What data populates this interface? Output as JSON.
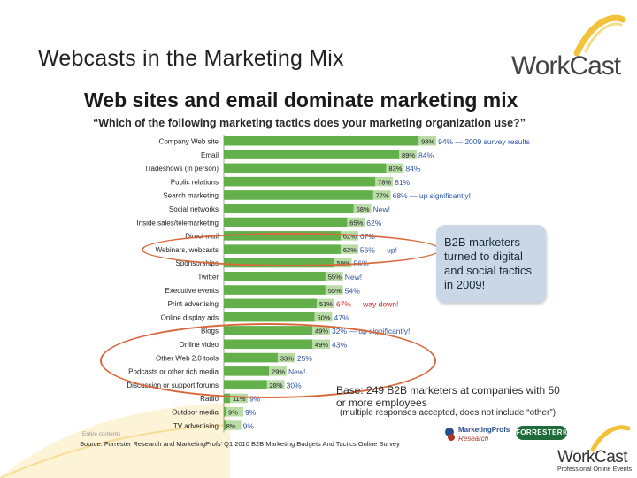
{
  "slide": {
    "title": "Webcasts in the Marketing Mix",
    "logo_top": "WorkCast",
    "logo_bottom": "WorkCast",
    "logo_tagline": "Professional Online Events"
  },
  "chart_data": {
    "type": "bar",
    "orientation": "horizontal",
    "title": "Web sites and email dominate marketing mix",
    "subtitle": "“Which of the following marketing tactics does your marketing organization use?”",
    "categories": [
      "Company Web site",
      "Email",
      "Tradeshows (in person)",
      "Public relations",
      "Search marketing",
      "Social networks",
      "Inside sales/telemarketing",
      "Direct mail",
      "Webinars, webcasts",
      "Sponsorships",
      "Twitter",
      "Executive events",
      "Print advertising",
      "Online display ads",
      "Blogs",
      "Online video",
      "Other Web 2.0 tools",
      "Podcasts or other rich media",
      "Discussion or support forums",
      "Radio",
      "Outdoor media",
      "TV advertising"
    ],
    "values": [
      98,
      89,
      83,
      78,
      77,
      68,
      65,
      62,
      62,
      59,
      55,
      55,
      51,
      50,
      49,
      49,
      33,
      29,
      28,
      11,
      9,
      8
    ],
    "value_labels": [
      "98%",
      "89%",
      "83%",
      "78%",
      "77%",
      "68%",
      "65%",
      "62%",
      "62%",
      "59%",
      "55%",
      "55%",
      "51%",
      "50%",
      "49%",
      "49%",
      "33%",
      "29%",
      "28%",
      "11%",
      "9%",
      "8%"
    ],
    "annotations": [
      "94% — 2009 survey results",
      "84%",
      "84%",
      "81%",
      "68% — up significantly!",
      "New!",
      "62%",
      "67%",
      "56% — up!",
      "56%",
      "New!",
      "54%",
      "67% — way down!",
      "47%",
      "32% — up significantly!",
      "43%",
      "25%",
      "New!",
      "30%",
      "9%",
      "9%",
      "9%"
    ],
    "annotation_colors": [
      "#2e55a4",
      "#2e55a4",
      "#2e55a4",
      "#2e55a4",
      "#2e55a4",
      "#2e55a4",
      "#2e55a4",
      "#2e55a4",
      "#2e55a4",
      "#2e55a4",
      "#2e55a4",
      "#2e55a4",
      "#d11f1f",
      "#2e55a4",
      "#2e55a4",
      "#2e55a4",
      "#2e55a4",
      "#2e55a4",
      "#2e55a4",
      "#2e55a4",
      "#2e55a4",
      "#2e55a4"
    ],
    "xlim": [
      0,
      100
    ],
    "bar_color_dark": "#63b04a",
    "bar_color_light": "#b9dca7"
  },
  "callout": {
    "text": "B2B marketers turned to digital and social tactics in 2009!"
  },
  "base_note": {
    "line1": "Base: 249 B2B marketers at companies with 50 or more employees",
    "line2": "(multiple responses accepted, does not include “other”)"
  },
  "source": "Source: Forrester Research and MarketingProfs’ Q1 2010 B2B Marketing Budgets And Tactics Online Survey",
  "faint_note": "Entire contents",
  "badges": {
    "marketingprofs_1": "MarketingProfs",
    "marketingprofs_2": "Research",
    "forrester": "FORRESTER®"
  },
  "colors": {
    "highlight_ellipse": "#d9683a",
    "title_dark": "#1a1a1a"
  }
}
